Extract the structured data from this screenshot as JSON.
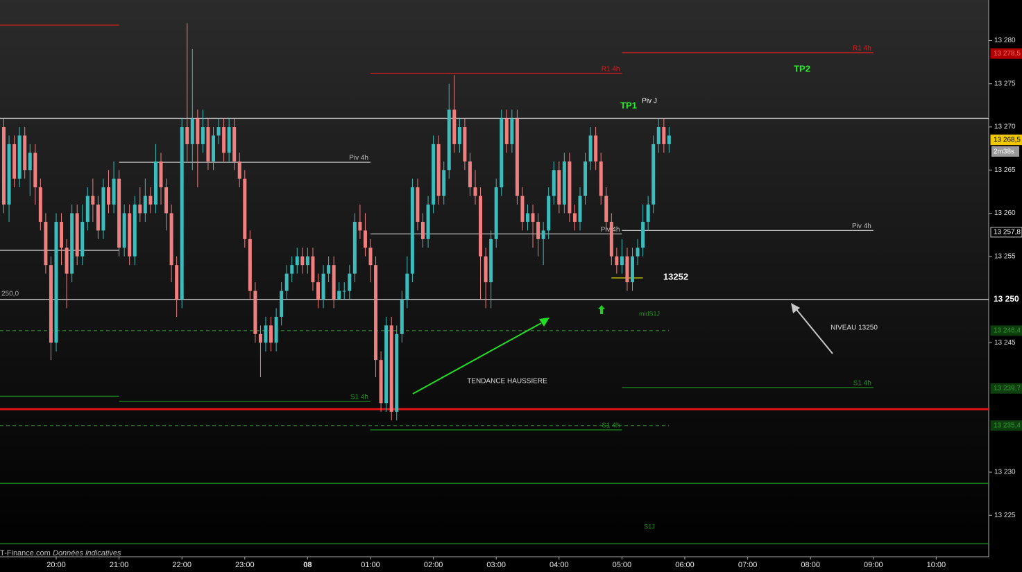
{
  "chart_data": {
    "type": "candlestick",
    "up_color": "#3cbcbc",
    "down_color": "#f07f7f",
    "ylim": [
      13220.2,
      13284.7
    ],
    "yticks": [
      {
        "value": 13280,
        "label": "13 280"
      },
      {
        "value": 13275,
        "label": "13 275"
      },
      {
        "value": 13270,
        "label": "13 270"
      },
      {
        "value": 13265,
        "label": "13 265"
      },
      {
        "value": 13260,
        "label": "13 260"
      },
      {
        "value": 13255,
        "label": "13 255"
      },
      {
        "value": 13245,
        "label": "13 245"
      },
      {
        "value": 13230,
        "label": "13 230"
      },
      {
        "value": 13225,
        "label": "13 225"
      }
    ],
    "xticks": [
      "20:00",
      "21:00",
      "22:00",
      "23:00",
      {
        "value": "00:00",
        "label": "08"
      },
      "01:00",
      "02:00",
      "03:00",
      "04:00",
      "05:00",
      "06:00",
      "07:00",
      "08:00",
      "09:00",
      "10:00"
    ],
    "x": [
      "19:10",
      "19:15",
      "19:20",
      "19:25",
      "19:30",
      "19:35",
      "19:40",
      "19:45",
      "19:50",
      "19:55",
      "20:00",
      "20:05",
      "20:10",
      "20:15",
      "20:20",
      "20:25",
      "20:30",
      "20:35",
      "20:40",
      "20:45",
      "20:50",
      "20:55",
      "21:00",
      "21:05",
      "21:10",
      "21:15",
      "21:20",
      "21:25",
      "21:30",
      "21:35",
      "21:40",
      "21:45",
      "21:50",
      "21:55",
      "22:00",
      "22:05",
      "22:10",
      "22:15",
      "22:20",
      "22:25",
      "22:30",
      "22:35",
      "22:40",
      "22:45",
      "22:50",
      "22:55",
      "23:00",
      "23:05",
      "23:10",
      "23:15",
      "23:20",
      "23:25",
      "23:30",
      "23:35",
      "23:40",
      "23:45",
      "23:50",
      "23:55",
      "00:00",
      "00:05",
      "00:10",
      "00:15",
      "00:20",
      "00:25",
      "00:30",
      "00:35",
      "00:40",
      "00:45",
      "00:50",
      "00:55",
      "01:00",
      "01:05",
      "01:10",
      "01:15",
      "01:20",
      "01:25",
      "01:30",
      "01:35",
      "01:40",
      "01:45",
      "01:50",
      "01:55",
      "02:00",
      "02:05",
      "02:10",
      "02:15",
      "02:20",
      "02:25",
      "02:30",
      "02:35",
      "02:40",
      "02:45",
      "02:50",
      "02:55",
      "03:00",
      "03:05",
      "03:10",
      "03:15",
      "03:20",
      "03:25",
      "03:30",
      "03:35",
      "03:40",
      "03:45",
      "03:50",
      "03:55",
      "04:00",
      "04:05",
      "04:10",
      "04:15",
      "04:20",
      "04:25",
      "04:30",
      "04:35",
      "04:40",
      "04:45",
      "04:50",
      "04:55",
      "05:00",
      "05:05",
      "05:10",
      "05:15",
      "05:20",
      "05:25",
      "05:30",
      "05:35",
      "05:40",
      "05:45"
    ],
    "open": [
      13270,
      13261,
      13268,
      13264,
      13269,
      13265,
      13267,
      13263,
      13259,
      13254,
      13245,
      13259,
      13256,
      13253,
      13260,
      13255,
      13259,
      13262,
      13261,
      13258,
      13263,
      13261,
      13264,
      13256,
      13260,
      13255,
      13261,
      13260,
      13262,
      13261,
      13266,
      13263,
      13260,
      13254,
      13250,
      13270,
      13268,
      13271,
      13268,
      13270,
      13266,
      13269,
      13270,
      13267,
      13270,
      13266,
      13264,
      13257,
      13251,
      13246,
      13245,
      13247,
      13245,
      13248,
      13251,
      13253,
      13254,
      13255,
      13254,
      13255,
      13252,
      13250,
      13253,
      13254,
      13250,
      13251,
      13251,
      13253,
      13259,
      13258,
      13256,
      13254,
      13243,
      13238,
      13247,
      13237,
      13246,
      13250,
      13253,
      13263,
      13259,
      13257,
      13261,
      13268,
      13262,
      13265,
      13272,
      13268,
      13270,
      13266,
      13263,
      13262,
      13255,
      13252,
      13257,
      13263,
      13271,
      13268,
      13271,
      13262,
      13259,
      13260,
      13259,
      13257,
      13258,
      13262,
      13265,
      13261,
      13266,
      13260,
      13259,
      13262,
      13266,
      13269,
      13266,
      13262,
      13259,
      13255,
      13254,
      13255,
      13252,
      13255,
      13256,
      13259,
      13261,
      13268,
      13270,
      13268
    ],
    "high": [
      13271,
      13269,
      13269,
      13270,
      13270,
      13268,
      13268,
      13264,
      13260,
      13255,
      13260,
      13260,
      13257,
      13261,
      13261,
      13261,
      13263,
      13264,
      13262,
      13264,
      13265,
      13266,
      13265,
      13261,
      13261,
      13262,
      13263,
      13264,
      13263,
      13268,
      13267,
      13264,
      13261,
      13255,
      13271,
      13282,
      13279,
      13272,
      13272,
      13271,
      13270,
      13271,
      13271,
      13271,
      13271,
      13267,
      13265,
      13258,
      13252,
      13247,
      13248,
      13248,
      13249,
      13252,
      13254,
      13255,
      13256,
      13256,
      13256,
      13256,
      13253,
      13254,
      13255,
      13255,
      13252,
      13252,
      13254,
      13260,
      13261,
      13260,
      13257,
      13255,
      13244,
      13248,
      13248,
      13247,
      13251,
      13255,
      13264,
      13264,
      13260,
      13262,
      13269,
      13269,
      13266,
      13275,
      13276,
      13271,
      13271,
      13267,
      13265,
      13263,
      13256,
      13258,
      13264,
      13272,
      13272,
      13272,
      13272,
      13263,
      13261,
      13261,
      13260,
      13259,
      13263,
      13266,
      13266,
      13267,
      13267,
      13261,
      13263,
      13267,
      13270,
      13270,
      13267,
      13263,
      13260,
      13256,
      13257,
      13256,
      13256,
      13257,
      13261,
      13262,
      13269,
      13271,
      13271,
      13270
    ],
    "low": [
      13260,
      13259,
      13263,
      13263,
      13264,
      13262,
      13261,
      13258,
      13253,
      13243,
      13244,
      13254,
      13249,
      13252,
      13254,
      13254,
      13258,
      13259,
      13257,
      13257,
      13260,
      13260,
      13255,
      13255,
      13254,
      13254,
      13259,
      13259,
      13260,
      13260,
      13261,
      13258,
      13252,
      13248,
      13249,
      13266,
      13265,
      13263,
      13267,
      13265,
      13265,
      13268,
      13266,
      13266,
      13265,
      13263,
      13256,
      13250,
      13245,
      13241,
      13244,
      13244,
      13244,
      13247,
      13250,
      13252,
      13253,
      13253,
      13253,
      13251,
      13249,
      13249,
      13252,
      13249,
      13250,
      13250,
      13250,
      13252,
      13257,
      13255,
      13252,
      13241,
      13237,
      13237,
      13236,
      13236,
      13245,
      13249,
      13252,
      13258,
      13256,
      13256,
      13260,
      13261,
      13261,
      13264,
      13267,
      13267,
      13265,
      13262,
      13261,
      13250,
      13249,
      13249,
      13256,
      13262,
      13267,
      13267,
      13261,
      13258,
      13258,
      13256,
      13255,
      13254,
      13257,
      13261,
      13260,
      13260,
      13259,
      13258,
      13258,
      13261,
      13265,
      13265,
      13261,
      13258,
      13254,
      13253,
      13253,
      13251,
      13251,
      13254,
      13255,
      13258,
      13260,
      13267,
      13267,
      13267
    ],
    "close": [
      13261,
      13268,
      13264,
      13269,
      13265,
      13267,
      13263,
      13259,
      13254,
      13245,
      13259,
      13256,
      13253,
      13260,
      13255,
      13259,
      13262,
      13261,
      13258,
      13263,
      13261,
      13264,
      13256,
      13260,
      13255,
      13261,
      13260,
      13262,
      13261,
      13266,
      13263,
      13260,
      13254,
      13250,
      13270,
      13268,
      13271,
      13268,
      13270,
      13266,
      13269,
      13270,
      13267,
      13270,
      13266,
      13264,
      13257,
      13251,
      13246,
      13245,
      13247,
      13245,
      13248,
      13251,
      13253,
      13254,
      13255,
      13254,
      13255,
      13252,
      13250,
      13253,
      13254,
      13250,
      13251,
      13251,
      13253,
      13259,
      13258,
      13256,
      13254,
      13243,
      13238,
      13247,
      13237,
      13246,
      13250,
      13253,
      13263,
      13259,
      13257,
      13261,
      13268,
      13262,
      13265,
      13272,
      13268,
      13270,
      13266,
      13263,
      13262,
      13255,
      13252,
      13257,
      13263,
      13271,
      13268,
      13271,
      13262,
      13259,
      13260,
      13259,
      13257,
      13258,
      13262,
      13265,
      13261,
      13266,
      13260,
      13259,
      13262,
      13266,
      13269,
      13266,
      13262,
      13259,
      13255,
      13254,
      13255,
      13252,
      13255,
      13256,
      13259,
      13261,
      13268,
      13270,
      13268,
      13269
    ],
    "levels": [
      {
        "value": 13281.8,
        "from": "17:00",
        "to": "21:00",
        "color": "#d42020"
      },
      {
        "value": 13276.2,
        "from": "01:00",
        "to": "05:00",
        "color": "#d42020",
        "label": "R1 4h"
      },
      {
        "value": 13278.6,
        "from": "05:00",
        "to": "09:00",
        "color": "#d42020",
        "label": "R1 4h"
      },
      {
        "value": 13271.0,
        "color": "#e8e8e8"
      },
      {
        "value": 13265.9,
        "from": "21:00",
        "to": "01:00",
        "color": "#bdbdbd",
        "label": "Piv 4h"
      },
      {
        "value": 13255.7,
        "from": "17:00",
        "to": "21:00",
        "color": "#bdbdbd"
      },
      {
        "value": 13257.6,
        "from": "01:00",
        "to": "05:00",
        "color": "#bdbdbd",
        "label": "Piv 4h"
      },
      {
        "value": 13258.0,
        "from": "05:00",
        "to": "09:00",
        "color": "#bdbdbd",
        "label": "Piv 4h"
      },
      {
        "value": 13250.0,
        "color": "#e8e8e8"
      },
      {
        "value": 13246.4,
        "to": "05:45",
        "color": "#2a7a2a",
        "style": "dashed"
      },
      {
        "value": 13238.8,
        "from": "17:00",
        "to": "21:00",
        "color": "#1f8f1f"
      },
      {
        "value": 13238.2,
        "from": "21:00",
        "to": "01:00",
        "color": "#1f8f1f",
        "label": "S1 4h"
      },
      {
        "value": 13239.8,
        "from": "05:00",
        "to": "09:00",
        "color": "#1f8f1f",
        "label": "S1 4h"
      },
      {
        "value": 13237.3,
        "color": "#e01515",
        "width": 3
      },
      {
        "value": 13235.4,
        "to": "05:45",
        "color": "#2a7a2a",
        "style": "dashed"
      },
      {
        "value": 13234.9,
        "from": "01:00",
        "to": "05:00",
        "color": "#1f8f1f",
        "label": "S1 4h"
      },
      {
        "value": 13228.7,
        "color": "#1f8f1f"
      },
      {
        "value": 13221.7,
        "color": "#1f8f1f"
      },
      {
        "value": 13252.5,
        "from": "04:50",
        "to": "05:20",
        "color": "#d8d800"
      }
    ],
    "price_tags": [
      {
        "value": 13278.5,
        "label": "13 278,5",
        "bg": "#b00000",
        "fg": "#ff6a6a"
      },
      {
        "value": 13268.5,
        "label": "13 268,5",
        "bg": "#f0c800",
        "fg": "#000000"
      },
      {
        "value": 13257.8,
        "label": "13 257,8",
        "bg": "#000000",
        "fg": "#ffffff"
      },
      {
        "value": 13250.0,
        "label": "13 250",
        "fg": "#ffffff"
      },
      {
        "value": 13246.4,
        "label": "13 246,4",
        "bg": "#0f3f0f",
        "fg": "#2e9a2e"
      },
      {
        "value": 13239.7,
        "label": "13 239,7",
        "bg": "#0f3f0f",
        "fg": "#2e9a2e"
      },
      {
        "value": 13235.4,
        "label": "13 235,4",
        "bg": "#0f3f0f",
        "fg": "#2e9a2e"
      }
    ],
    "timer": "2m38s",
    "annotations": {
      "tp1": "TP1",
      "tp2": "TP2",
      "piv_j": "Piv J",
      "trend": "TENDANCE HAUSSIERE",
      "niveau": "NIVEAU 13250",
      "level_13252": "13252",
      "mid_s1j": "midS1J",
      "s1j": "S1J",
      "left_level": "250,0"
    }
  },
  "footer": {
    "source": "T-Finance.com",
    "note": "Données indicatives"
  }
}
